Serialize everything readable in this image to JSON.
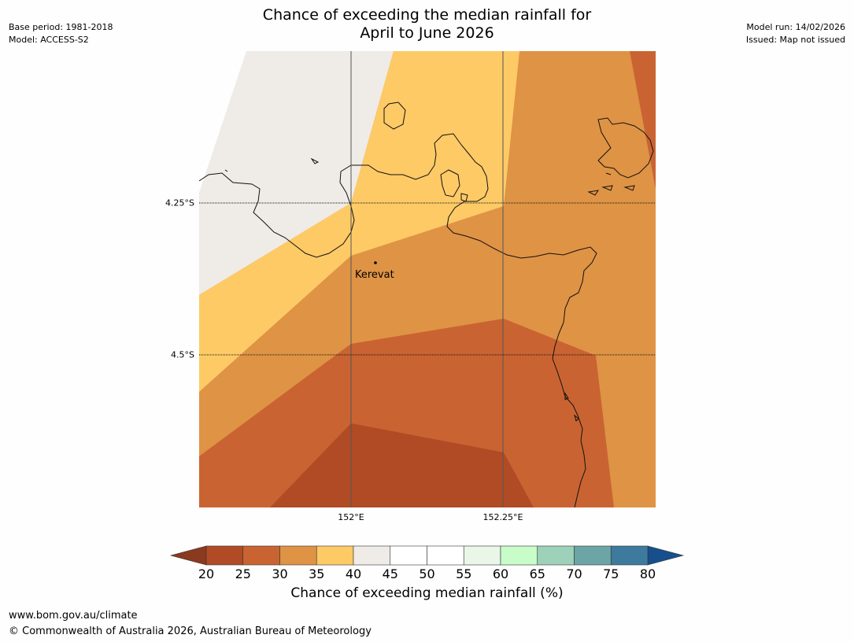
{
  "title_line1": "Chance of exceeding the median rainfall for",
  "title_line2": "April to June 2026",
  "meta_left": {
    "base_period": "Base period: 1981-2018",
    "model": "Model: ACCESS-S2"
  },
  "meta_right": {
    "model_run": "Model run: 14/02/2026",
    "issued": "Issued: Map not issued"
  },
  "map": {
    "lat_labels": [
      "4.25°S",
      "4.5°S"
    ],
    "lon_labels": [
      "152°E",
      "152.25°E"
    ],
    "city": "Kerevat"
  },
  "colorbar": {
    "ticks": [
      "20",
      "25",
      "30",
      "35",
      "40",
      "45",
      "50",
      "55",
      "60",
      "65",
      "70",
      "75",
      "80"
    ],
    "colors": [
      "#b04b25",
      "#c96432",
      "#df9345",
      "#fdca66",
      "#efebe6",
      "#ffffff",
      "#ffffff",
      "#e9f6e8",
      "#c8fcc8",
      "#9dd1b9",
      "#6ca5a6",
      "#3d7a9d"
    ],
    "under_color": "#8b3a1f",
    "over_color": "#164f8c",
    "label": "Chance of exceeding median rainfall (%)"
  },
  "colors": {
    "class_20_25": "#b04b25",
    "class_25_30": "#c96432",
    "class_30_35": "#df9345",
    "class_35_40": "#fdca66",
    "class_40_45": "#efebe6"
  },
  "footer": {
    "url": "www.bom.gov.au/climate",
    "copyright": "© Commonwealth of Australia 2026, Australian Bureau of Meteorology"
  }
}
